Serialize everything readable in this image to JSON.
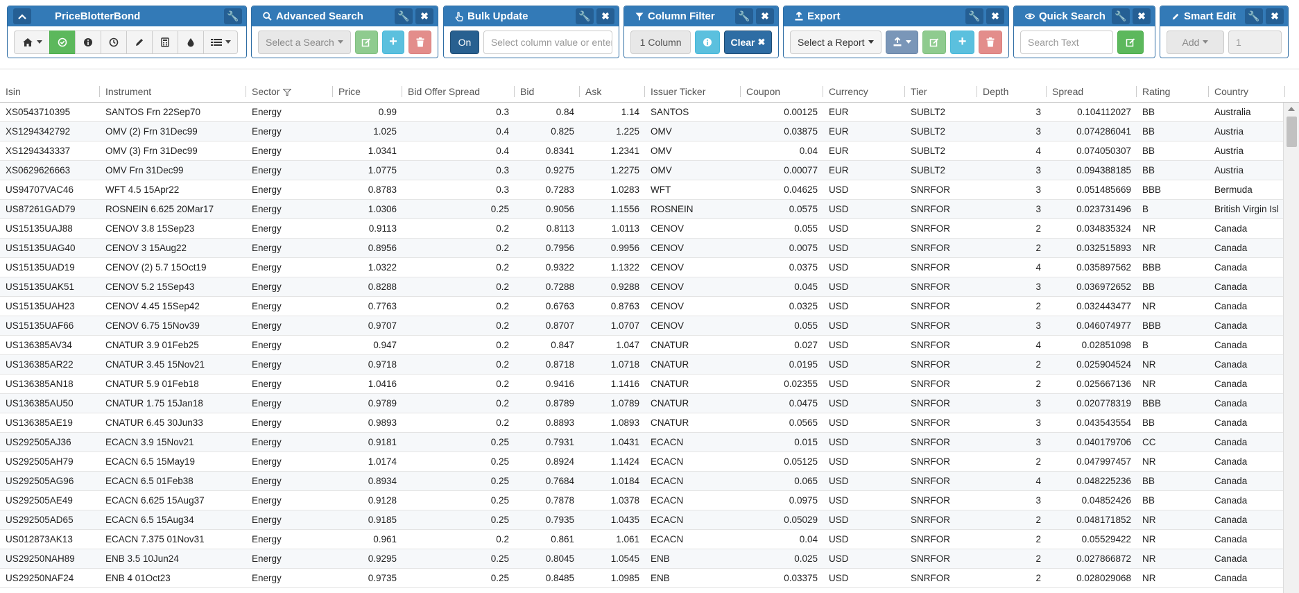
{
  "toolbars": {
    "price_blotter": {
      "title": "PriceBlotterBond"
    },
    "advanced_search": {
      "title": "Advanced Search",
      "select_placeholder": "Select a Search"
    },
    "bulk_update": {
      "title": "Bulk Update",
      "on_label": "On",
      "input_placeholder": "Select column value or enter"
    },
    "column_filter": {
      "title": "Column Filter",
      "count_label": "1 Column",
      "clear_label": "Clear"
    },
    "export": {
      "title": "Export",
      "select_label": "Select a Report"
    },
    "quick_search": {
      "title": "Quick Search",
      "input_placeholder": "Search Text"
    },
    "smart_edit": {
      "title": "Smart Edit",
      "op_label": "Add",
      "value": "1"
    }
  },
  "grid": {
    "columns": [
      "Isin",
      "Instrument",
      "Sector",
      "Price",
      "Bid Offer Spread",
      "Bid",
      "Ask",
      "Issuer Ticker",
      "Coupon",
      "Currency",
      "Tier",
      "Depth",
      "Spread",
      "Rating",
      "Country"
    ],
    "rows": [
      [
        "XS0543710395",
        "SANTOS Frn 22Sep70",
        "Energy",
        "0.99",
        "0.3",
        "0.84",
        "1.14",
        "SANTOS",
        "0.00125",
        "EUR",
        "SUBLT2",
        "3",
        "0.104112027",
        "BB",
        "Australia"
      ],
      [
        "XS1294342792",
        "OMV (2) Frn 31Dec99",
        "Energy",
        "1.025",
        "0.4",
        "0.825",
        "1.225",
        "OMV",
        "0.03875",
        "EUR",
        "SUBLT2",
        "3",
        "0.074286041",
        "BB",
        "Austria"
      ],
      [
        "XS1294343337",
        "OMV (3) Frn 31Dec99",
        "Energy",
        "1.0341",
        "0.4",
        "0.8341",
        "1.2341",
        "OMV",
        "0.04",
        "EUR",
        "SUBLT2",
        "4",
        "0.074050307",
        "BB",
        "Austria"
      ],
      [
        "XS0629626663",
        "OMV Frn 31Dec99",
        "Energy",
        "1.0775",
        "0.3",
        "0.9275",
        "1.2275",
        "OMV",
        "0.00077",
        "EUR",
        "SUBLT2",
        "3",
        "0.094388185",
        "BB",
        "Austria"
      ],
      [
        "US94707VAC46",
        "WFT 4.5 15Apr22",
        "Energy",
        "0.8783",
        "0.3",
        "0.7283",
        "1.0283",
        "WFT",
        "0.04625",
        "USD",
        "SNRFOR",
        "3",
        "0.051485669",
        "BBB",
        "Bermuda"
      ],
      [
        "US87261GAD79",
        "ROSNEIN 6.625 20Mar17",
        "Energy",
        "1.0306",
        "0.25",
        "0.9056",
        "1.1556",
        "ROSNEIN",
        "0.0575",
        "USD",
        "SNRFOR",
        "3",
        "0.023731496",
        "B",
        "British Virgin Isl"
      ],
      [
        "US15135UAJ88",
        "CENOV 3.8 15Sep23",
        "Energy",
        "0.9113",
        "0.2",
        "0.8113",
        "1.0113",
        "CENOV",
        "0.055",
        "USD",
        "SNRFOR",
        "2",
        "0.034835324",
        "NR",
        "Canada"
      ],
      [
        "US15135UAG40",
        "CENOV 3 15Aug22",
        "Energy",
        "0.8956",
        "0.2",
        "0.7956",
        "0.9956",
        "CENOV",
        "0.0075",
        "USD",
        "SNRFOR",
        "2",
        "0.032515893",
        "NR",
        "Canada"
      ],
      [
        "US15135UAD19",
        "CENOV (2) 5.7 15Oct19",
        "Energy",
        "1.0322",
        "0.2",
        "0.9322",
        "1.1322",
        "CENOV",
        "0.0375",
        "USD",
        "SNRFOR",
        "4",
        "0.035897562",
        "BBB",
        "Canada"
      ],
      [
        "US15135UAK51",
        "CENOV 5.2 15Sep43",
        "Energy",
        "0.8288",
        "0.2",
        "0.7288",
        "0.9288",
        "CENOV",
        "0.045",
        "USD",
        "SNRFOR",
        "3",
        "0.036972652",
        "BB",
        "Canada"
      ],
      [
        "US15135UAH23",
        "CENOV 4.45 15Sep42",
        "Energy",
        "0.7763",
        "0.2",
        "0.6763",
        "0.8763",
        "CENOV",
        "0.0325",
        "USD",
        "SNRFOR",
        "2",
        "0.032443477",
        "NR",
        "Canada"
      ],
      [
        "US15135UAF66",
        "CENOV 6.75 15Nov39",
        "Energy",
        "0.9707",
        "0.2",
        "0.8707",
        "1.0707",
        "CENOV",
        "0.055",
        "USD",
        "SNRFOR",
        "3",
        "0.046074977",
        "BBB",
        "Canada"
      ],
      [
        "US136385AV34",
        "CNATUR 3.9 01Feb25",
        "Energy",
        "0.947",
        "0.2",
        "0.847",
        "1.047",
        "CNATUR",
        "0.027",
        "USD",
        "SNRFOR",
        "4",
        "0.02851098",
        "B",
        "Canada"
      ],
      [
        "US136385AR22",
        "CNATUR 3.45 15Nov21",
        "Energy",
        "0.9718",
        "0.2",
        "0.8718",
        "1.0718",
        "CNATUR",
        "0.0195",
        "USD",
        "SNRFOR",
        "2",
        "0.025904524",
        "NR",
        "Canada"
      ],
      [
        "US136385AN18",
        "CNATUR 5.9 01Feb18",
        "Energy",
        "1.0416",
        "0.2",
        "0.9416",
        "1.1416",
        "CNATUR",
        "0.02355",
        "USD",
        "SNRFOR",
        "2",
        "0.025667136",
        "NR",
        "Canada"
      ],
      [
        "US136385AU50",
        "CNATUR 1.75 15Jan18",
        "Energy",
        "0.9789",
        "0.2",
        "0.8789",
        "1.0789",
        "CNATUR",
        "0.0475",
        "USD",
        "SNRFOR",
        "3",
        "0.020778319",
        "BBB",
        "Canada"
      ],
      [
        "US136385AE19",
        "CNATUR 6.45 30Jun33",
        "Energy",
        "0.9893",
        "0.2",
        "0.8893",
        "1.0893",
        "CNATUR",
        "0.0565",
        "USD",
        "SNRFOR",
        "3",
        "0.043543554",
        "BB",
        "Canada"
      ],
      [
        "US292505AJ36",
        "ECACN 3.9 15Nov21",
        "Energy",
        "0.9181",
        "0.25",
        "0.7931",
        "1.0431",
        "ECACN",
        "0.015",
        "USD",
        "SNRFOR",
        "3",
        "0.040179706",
        "CC",
        "Canada"
      ],
      [
        "US292505AH79",
        "ECACN 6.5 15May19",
        "Energy",
        "1.0174",
        "0.25",
        "0.8924",
        "1.1424",
        "ECACN",
        "0.05125",
        "USD",
        "SNRFOR",
        "2",
        "0.047997457",
        "NR",
        "Canada"
      ],
      [
        "US292505AG96",
        "ECACN 6.5 01Feb38",
        "Energy",
        "0.8934",
        "0.25",
        "0.7684",
        "1.0184",
        "ECACN",
        "0.065",
        "USD",
        "SNRFOR",
        "4",
        "0.048225236",
        "BB",
        "Canada"
      ],
      [
        "US292505AE49",
        "ECACN 6.625 15Aug37",
        "Energy",
        "0.9128",
        "0.25",
        "0.7878",
        "1.0378",
        "ECACN",
        "0.0975",
        "USD",
        "SNRFOR",
        "3",
        "0.04852426",
        "BB",
        "Canada"
      ],
      [
        "US292505AD65",
        "ECACN 6.5 15Aug34",
        "Energy",
        "0.9185",
        "0.25",
        "0.7935",
        "1.0435",
        "ECACN",
        "0.05029",
        "USD",
        "SNRFOR",
        "2",
        "0.048171852",
        "NR",
        "Canada"
      ],
      [
        "US012873AK13",
        "ECACN 7.375 01Nov31",
        "Energy",
        "0.961",
        "0.2",
        "0.861",
        "1.061",
        "ECACN",
        "0.04",
        "USD",
        "SNRFOR",
        "2",
        "0.05529422",
        "NR",
        "Canada"
      ],
      [
        "US29250NAH89",
        "ENB 3.5 10Jun24",
        "Energy",
        "0.9295",
        "0.25",
        "0.8045",
        "1.0545",
        "ENB",
        "0.025",
        "USD",
        "SNRFOR",
        "2",
        "0.027866872",
        "NR",
        "Canada"
      ],
      [
        "US29250NAF24",
        "ENB 4 01Oct23",
        "Energy",
        "0.9735",
        "0.25",
        "0.8485",
        "1.0985",
        "ENB",
        "0.03375",
        "USD",
        "SNRFOR",
        "2",
        "0.028029068",
        "NR",
        "Canada"
      ]
    ]
  }
}
